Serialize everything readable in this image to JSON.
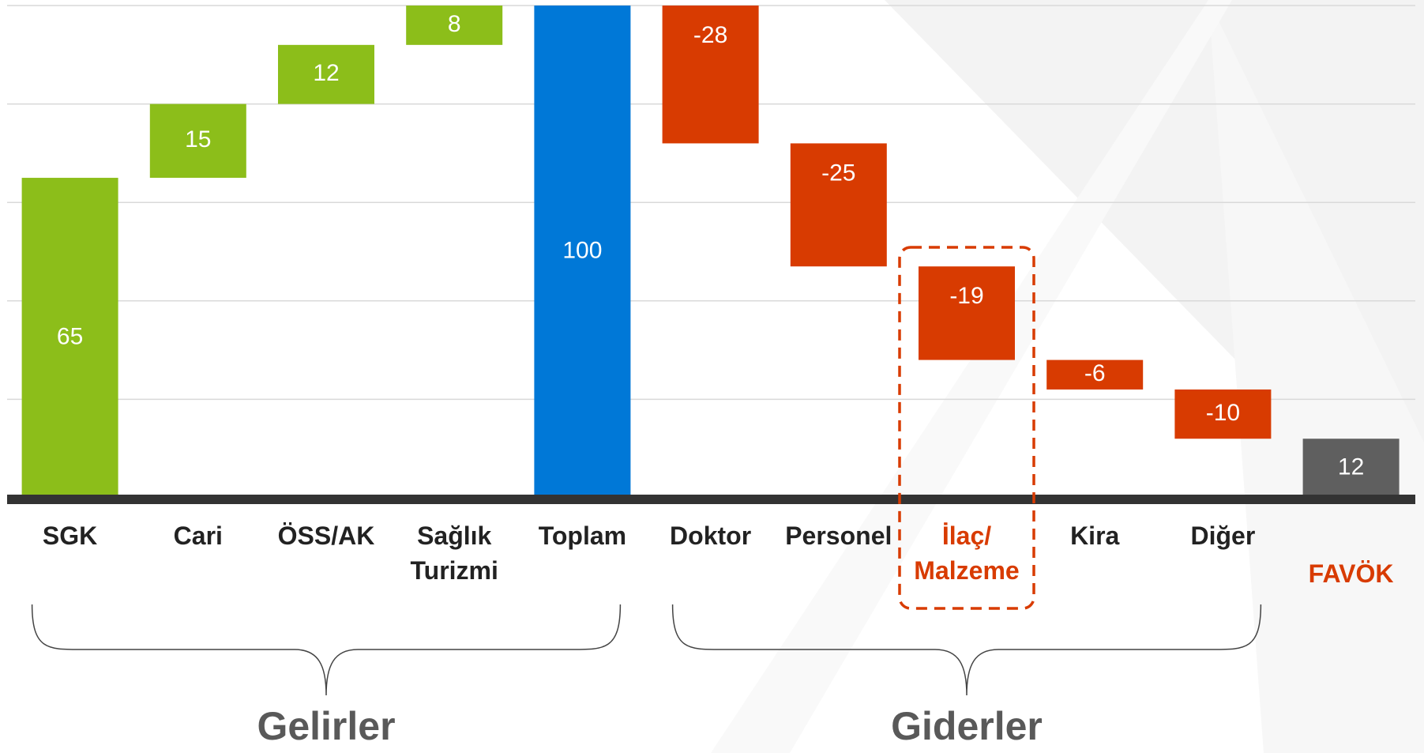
{
  "chart_data": {
    "type": "waterfall",
    "categories": [
      "SGK",
      "Cari",
      "ÖSS/AK",
      "Sağlık Turizmi",
      "Toplam",
      "Doktor",
      "Personel",
      "İlaç/ Malzeme",
      "Kira",
      "Diğer",
      "FAVÖK"
    ],
    "values": [
      65,
      15,
      12,
      8,
      100,
      -28,
      -25,
      -19,
      -6,
      -10,
      12
    ],
    "is_total": [
      false,
      false,
      false,
      false,
      true,
      false,
      false,
      false,
      false,
      false,
      true
    ],
    "colors": [
      "#8cbe1a",
      "#8cbe1a",
      "#8cbe1a",
      "#8cbe1a",
      "#0078d7",
      "#d83b01",
      "#d83b01",
      "#d83b01",
      "#d83b01",
      "#d83b01",
      "#5f5f5f"
    ],
    "label_colors": [
      "#222222",
      "#222222",
      "#222222",
      "#222222",
      "#222222",
      "#222222",
      "#222222",
      "#d83b01",
      "#222222",
      "#222222",
      "#d83b01"
    ],
    "boxed": [
      false,
      false,
      false,
      false,
      false,
      false,
      false,
      true,
      false,
      false,
      false
    ],
    "ylim": [
      0,
      100
    ],
    "yticks": [
      0,
      20,
      40,
      60,
      80,
      100
    ],
    "grid": true,
    "groups": [
      {
        "label": "Gelirler",
        "from": 0,
        "to": 4
      },
      {
        "label": "Giderler",
        "from": 5,
        "to": 9
      }
    ]
  }
}
